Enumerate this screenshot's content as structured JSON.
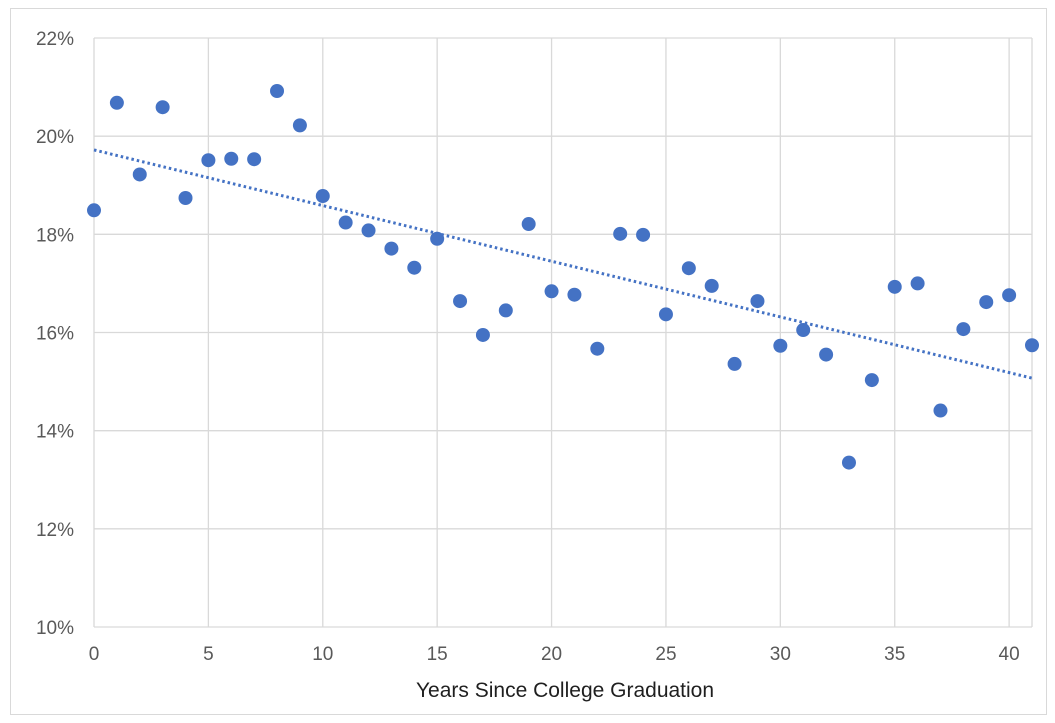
{
  "chart_data": {
    "type": "scatter",
    "title": "",
    "xlabel": "Years Since College Graduation",
    "ylabel": "",
    "xlim": [
      0,
      41
    ],
    "ylim": [
      0.1,
      0.22
    ],
    "x_ticks": [
      0,
      5,
      10,
      15,
      20,
      25,
      30,
      35,
      40
    ],
    "x_tick_labels": [
      "0",
      "5",
      "10",
      "15",
      "20",
      "25",
      "30",
      "35",
      "40"
    ],
    "y_ticks": [
      0.1,
      0.12,
      0.14,
      0.16,
      0.18,
      0.2,
      0.22
    ],
    "y_tick_labels": [
      "10%",
      "12%",
      "14%",
      "16%",
      "18%",
      "20%",
      "22%"
    ],
    "grid": true,
    "legend": "none",
    "marker_color": "#4472c4",
    "trendline": {
      "type": "linear",
      "style": "dotted",
      "color": "#4472c4",
      "start": [
        0,
        0.1972
      ],
      "end": [
        41,
        0.1507
      ]
    },
    "points": [
      [
        0,
        0.1849
      ],
      [
        1,
        0.2068
      ],
      [
        2,
        0.1922
      ],
      [
        3,
        0.2059
      ],
      [
        4,
        0.1874
      ],
      [
        5,
        0.1951
      ],
      [
        6,
        0.1954
      ],
      [
        7,
        0.1953
      ],
      [
        8,
        0.2092
      ],
      [
        9,
        0.2022
      ],
      [
        10,
        0.1878
      ],
      [
        11,
        0.1824
      ],
      [
        12,
        0.1808
      ],
      [
        13,
        0.1771
      ],
      [
        14,
        0.1732
      ],
      [
        15,
        0.1791
      ],
      [
        16,
        0.1664
      ],
      [
        17,
        0.1595
      ],
      [
        18,
        0.1645
      ],
      [
        19,
        0.1821
      ],
      [
        20,
        0.1684
      ],
      [
        21,
        0.1677
      ],
      [
        22,
        0.1567
      ],
      [
        23,
        0.1801
      ],
      [
        24,
        0.1799
      ],
      [
        25,
        0.1637
      ],
      [
        26,
        0.1731
      ],
      [
        27,
        0.1695
      ],
      [
        28,
        0.1536
      ],
      [
        29,
        0.1664
      ],
      [
        30,
        0.1573
      ],
      [
        31,
        0.1605
      ],
      [
        32,
        0.1555
      ],
      [
        33,
        0.1335
      ],
      [
        34,
        0.1503
      ],
      [
        35,
        0.1693
      ],
      [
        36,
        0.17
      ],
      [
        37,
        0.1441
      ],
      [
        38,
        0.1607
      ],
      [
        39,
        0.1662
      ],
      [
        40,
        0.1676
      ],
      [
        41,
        0.1574
      ]
    ]
  }
}
